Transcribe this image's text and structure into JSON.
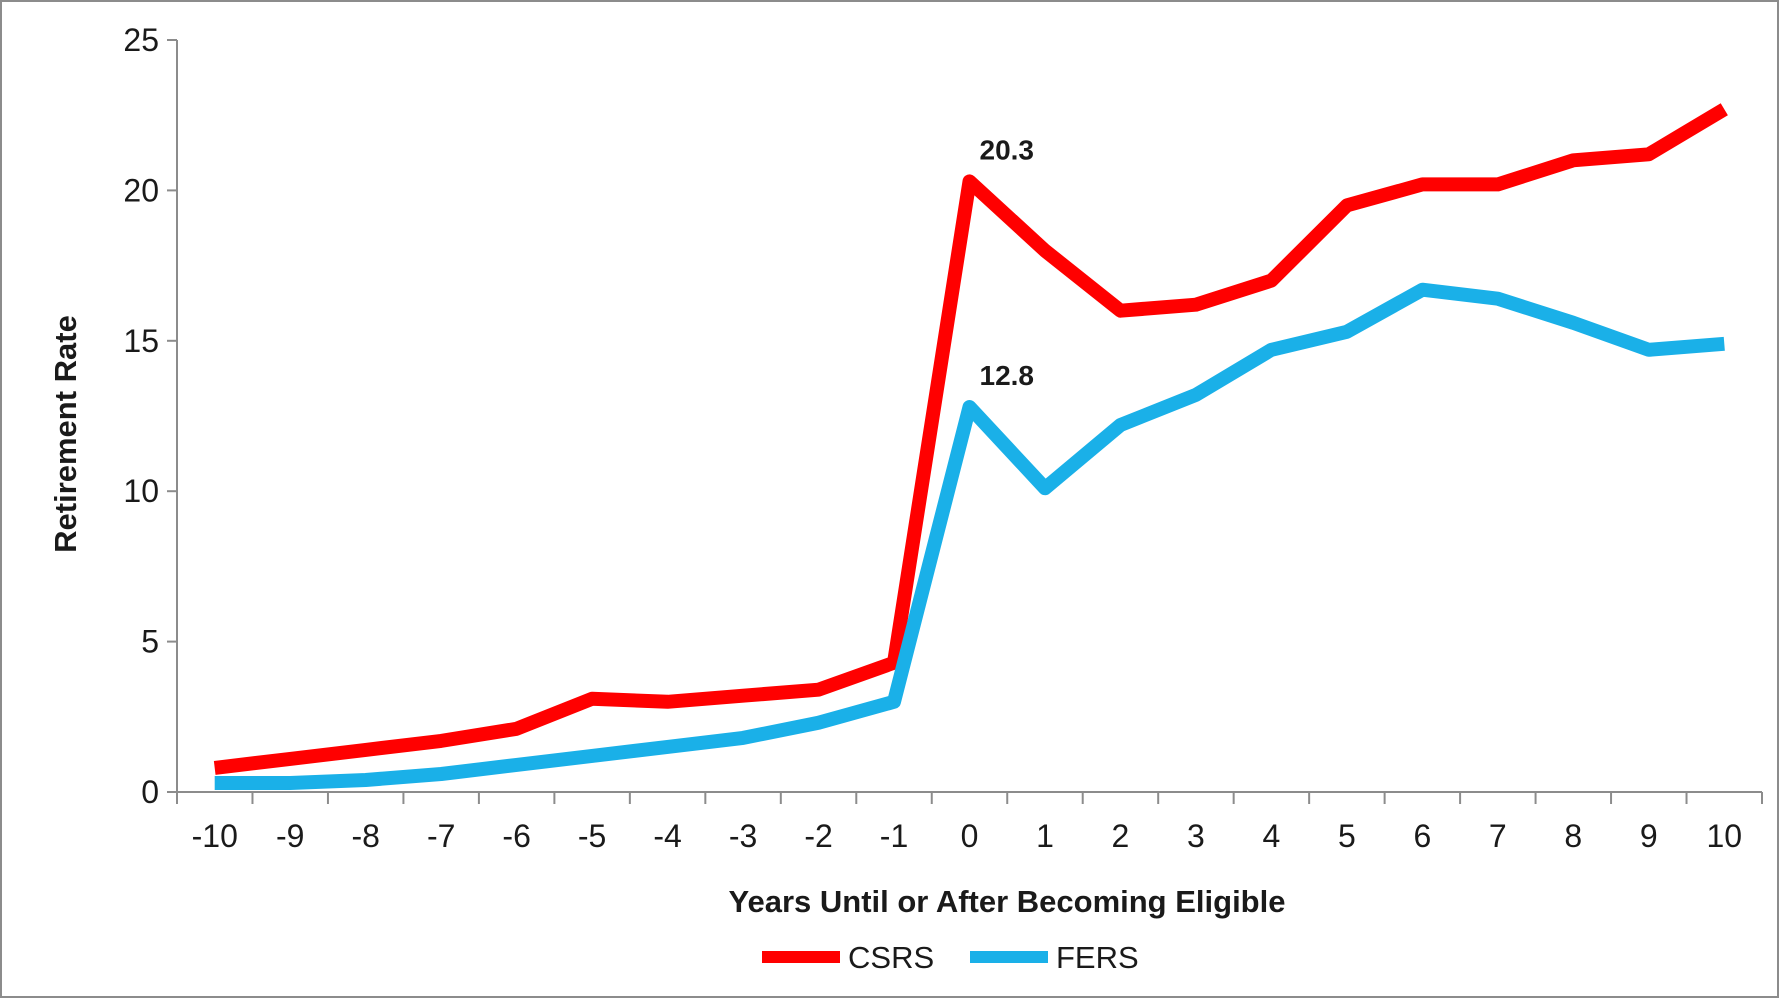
{
  "chart_data": {
    "type": "line",
    "xlabel": "Years Until or After Becoming Eligible",
    "ylabel": "Retirement Rate",
    "x": [
      -10,
      -9,
      -8,
      -7,
      -6,
      -5,
      -4,
      -3,
      -2,
      -1,
      0,
      1,
      2,
      3,
      4,
      5,
      6,
      7,
      8,
      9,
      10
    ],
    "x_tick_labels": [
      "-10",
      "-9",
      "-8",
      "-7",
      "-6",
      "-5",
      "-4",
      "-3",
      "-2",
      "-1",
      "0",
      "1",
      "2",
      "3",
      "4",
      "5",
      "6",
      "7",
      "8",
      "9",
      "10"
    ],
    "ylim": [
      0,
      25
    ],
    "y_ticks": [
      0,
      5,
      10,
      15,
      20,
      25
    ],
    "y_tick_labels": [
      "0",
      "5",
      "10",
      "15",
      "20",
      "25"
    ],
    "grid": false,
    "legend_position": "bottom-center",
    "series": [
      {
        "name": "CSRS",
        "color": "#ff0000",
        "values": [
          0.8,
          1.1,
          1.4,
          1.7,
          2.1,
          3.1,
          3.0,
          3.2,
          3.4,
          4.3,
          20.3,
          18.0,
          16.0,
          16.2,
          17.0,
          19.5,
          20.2,
          20.2,
          21.0,
          21.2,
          22.7
        ]
      },
      {
        "name": "FERS",
        "color": "#1ab0e8",
        "values": [
          0.3,
          0.3,
          0.4,
          0.6,
          0.9,
          1.2,
          1.5,
          1.8,
          2.3,
          3.0,
          12.8,
          10.1,
          12.2,
          13.2,
          14.7,
          15.3,
          16.7,
          16.4,
          15.6,
          14.7,
          14.9
        ]
      }
    ],
    "annotations": [
      {
        "series": "CSRS",
        "x": 0,
        "text": "20.3"
      },
      {
        "series": "FERS",
        "x": 0,
        "text": "12.8"
      }
    ]
  }
}
